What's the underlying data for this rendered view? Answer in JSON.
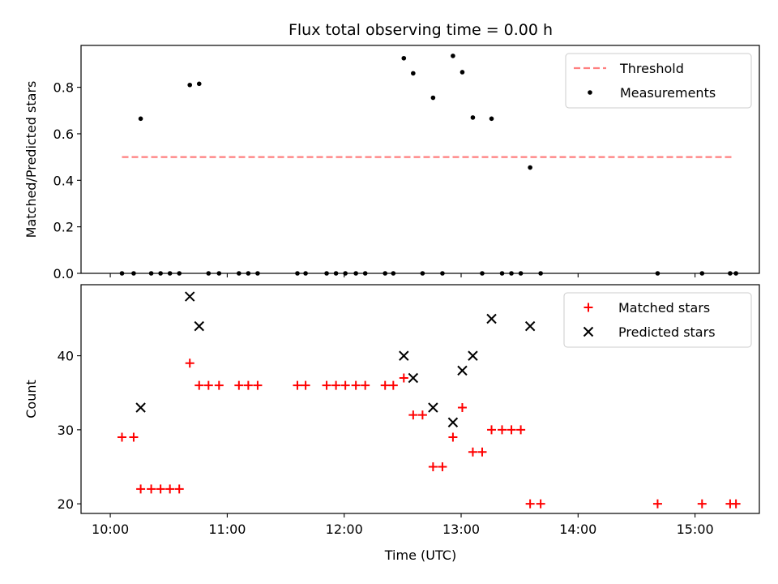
{
  "chart_data": {
    "title": "Flux total observing time = 0.00 h",
    "xlabel": "Time (UTC)",
    "x_tick_labels": [
      "10:00",
      "11:00",
      "12:00",
      "13:00",
      "14:00",
      "15:00"
    ],
    "xlim_hours": [
      9.75,
      15.55
    ],
    "x_tick_hours": [
      10,
      11,
      12,
      13,
      14,
      15
    ],
    "panels": [
      {
        "type": "scatter",
        "ylabel": "Matched/Predicted stars",
        "ylim": [
          0,
          0.98
        ],
        "y_ticks": [
          0.0,
          0.2,
          0.4,
          0.6,
          0.8
        ],
        "y_tick_labels": [
          "0.0",
          "0.2",
          "0.4",
          "0.6",
          "0.8"
        ],
        "legend_position": "top-right",
        "threshold": {
          "name": "Threshold",
          "value": 0.5,
          "x_range_hours": [
            10.1,
            15.33
          ],
          "color": "#ff7f7f"
        },
        "series": [
          {
            "name": "Measurements",
            "marker": "dot",
            "color": "#000000",
            "x_hours": [
              10.1,
              10.2,
              10.26,
              10.35,
              10.43,
              10.51,
              10.59,
              10.68,
              10.76,
              10.84,
              10.93,
              11.1,
              11.18,
              11.26,
              11.6,
              11.67,
              11.85,
              11.93,
              12.01,
              12.1,
              12.18,
              12.35,
              12.42,
              12.51,
              12.59,
              12.67,
              12.76,
              12.84,
              12.93,
              13.01,
              13.1,
              13.18,
              13.26,
              13.35,
              13.43,
              13.51,
              13.59,
              13.68,
              14.68,
              15.06,
              15.3,
              15.35
            ],
            "values": [
              0,
              0,
              0.665,
              0,
              0,
              0,
              0,
              0.81,
              0.815,
              0,
              0,
              0,
              0,
              0,
              0,
              0,
              0,
              0,
              0,
              0,
              0,
              0,
              0,
              0.925,
              0.86,
              0,
              0.755,
              0,
              0.935,
              0.865,
              0.67,
              0,
              0.665,
              0,
              0,
              0,
              0.455,
              0,
              0,
              0,
              0,
              0
            ]
          }
        ]
      },
      {
        "type": "scatter",
        "ylabel": "Count",
        "ylim": [
          18.7,
          49.6
        ],
        "y_ticks": [
          20,
          30,
          40
        ],
        "y_tick_labels": [
          "20",
          "30",
          "40"
        ],
        "legend_position": "top-right",
        "series": [
          {
            "name": "Matched stars",
            "marker": "plus",
            "color": "#ff0000",
            "x_hours": [
              10.1,
              10.2,
              10.26,
              10.35,
              10.43,
              10.51,
              10.59,
              10.68,
              10.76,
              10.84,
              10.93,
              11.1,
              11.18,
              11.26,
              11.6,
              11.67,
              11.85,
              11.93,
              12.01,
              12.1,
              12.18,
              12.35,
              12.42,
              12.51,
              12.59,
              12.67,
              12.76,
              12.84,
              12.93,
              13.01,
              13.1,
              13.18,
              13.26,
              13.35,
              13.43,
              13.51,
              13.59,
              13.68,
              14.68,
              15.06,
              15.3,
              15.35
            ],
            "values": [
              29,
              29,
              22,
              22,
              22,
              22,
              22,
              39,
              36,
              36,
              36,
              36,
              36,
              36,
              36,
              36,
              36,
              36,
              36,
              36,
              36,
              36,
              36,
              37,
              32,
              32,
              25,
              25,
              29,
              33,
              27,
              27,
              30,
              30,
              30,
              30,
              20,
              20,
              20,
              20,
              20,
              20
            ]
          },
          {
            "name": "Predicted stars",
            "marker": "x",
            "color": "#000000",
            "x_hours": [
              10.26,
              10.68,
              10.76,
              12.51,
              12.59,
              12.76,
              12.93,
              13.01,
              13.1,
              13.26,
              13.59
            ],
            "values": [
              33,
              48,
              44,
              40,
              37,
              33,
              31,
              38,
              40,
              45,
              44
            ]
          }
        ]
      }
    ]
  }
}
